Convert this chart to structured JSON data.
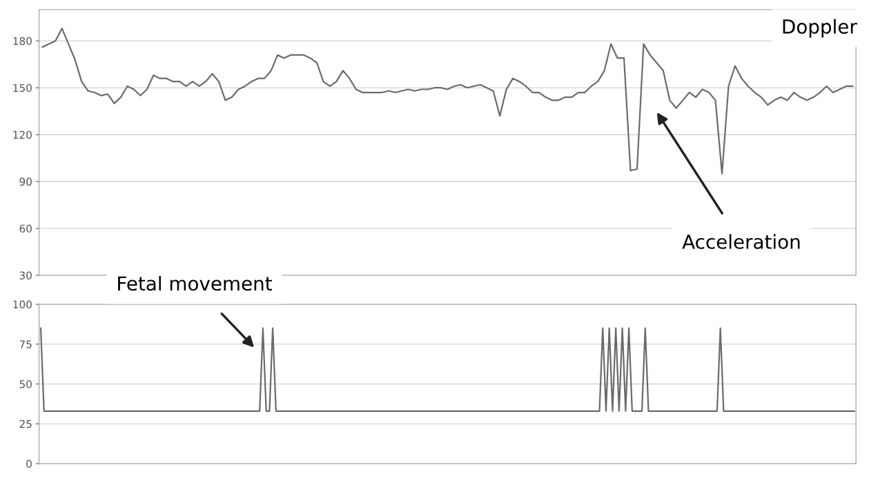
{
  "chart_data": [
    {
      "type": "line",
      "color": "#6b6b6b",
      "ylim": [
        30,
        200
      ],
      "yticks": [
        30,
        60,
        90,
        120,
        150,
        180
      ],
      "grid": "y",
      "tick_labels": "y",
      "annotations": [
        "Doppler",
        "Acceleration"
      ],
      "categories": [
        null,
        null,
        null,
        null,
        null,
        null,
        null,
        null,
        null,
        null,
        null,
        null,
        null,
        null,
        null,
        null,
        null,
        null,
        null,
        null,
        null,
        null,
        null,
        null,
        null,
        null,
        null,
        null,
        null,
        null,
        null,
        null,
        null,
        null,
        null,
        null,
        null,
        null,
        null,
        null,
        null,
        null,
        null,
        null,
        null,
        null,
        null,
        null,
        null,
        null,
        null,
        null,
        null,
        null,
        null,
        null,
        null,
        null,
        null,
        null,
        null,
        null,
        null,
        null,
        null,
        null,
        null,
        null,
        null,
        null,
        null,
        null,
        null,
        null,
        null,
        null,
        null,
        null,
        null,
        null,
        null,
        null,
        null,
        null,
        null,
        null,
        null,
        null,
        null,
        null,
        null,
        null,
        null,
        null,
        null,
        null,
        null,
        null,
        null,
        null,
        null,
        null,
        null,
        null,
        null,
        null,
        null,
        null,
        null,
        null,
        null,
        null,
        null,
        null,
        null,
        null,
        null,
        null,
        null,
        null,
        null,
        null,
        null,
        null,
        null
      ],
      "values": [
        176,
        178,
        180,
        188,
        178,
        168,
        154,
        148,
        147,
        145,
        146,
        140,
        144,
        151,
        149,
        145,
        149,
        158,
        156,
        156,
        154,
        154,
        151,
        154,
        151,
        154,
        159,
        154,
        142,
        144,
        149,
        151,
        154,
        156,
        156,
        161,
        171,
        169,
        171,
        171,
        171,
        169,
        166,
        154,
        151,
        154,
        161,
        156,
        149,
        147,
        147,
        147,
        147,
        148,
        147,
        148,
        149,
        148,
        149,
        149,
        150,
        150,
        149,
        151,
        152,
        150,
        151,
        152,
        150,
        148,
        132,
        149,
        156,
        154,
        151,
        147,
        147,
        144,
        142,
        142,
        144,
        144,
        147,
        147,
        151,
        154,
        161,
        178,
        169,
        169,
        97,
        98,
        178,
        171,
        166,
        161,
        142,
        137,
        142,
        147,
        144,
        149,
        147,
        142,
        95,
        151,
        164,
        156,
        151,
        147,
        144,
        139,
        142,
        144,
        142,
        147,
        144,
        142,
        144,
        147,
        151,
        147,
        149,
        151,
        151
      ]
    },
    {
      "type": "line",
      "color": "#6b6b6b",
      "ylim": [
        0,
        100
      ],
      "yticks": [
        0,
        25,
        50,
        75,
        100
      ],
      "grid": "y",
      "tick_labels": "y",
      "annotations": [
        "Fetal movement"
      ],
      "categories": [
        null,
        null,
        null,
        null,
        null,
        null,
        null,
        null,
        null,
        null,
        null,
        null,
        null,
        null,
        null,
        null,
        null,
        null,
        null,
        null,
        null,
        null,
        null,
        null,
        null,
        null,
        null,
        null,
        null,
        null,
        null,
        null,
        null,
        null,
        null,
        null,
        null,
        null,
        null,
        null,
        null,
        null,
        null,
        null,
        null,
        null,
        null,
        null,
        null,
        null,
        null,
        null,
        null,
        null,
        null,
        null,
        null,
        null,
        null,
        null,
        null,
        null,
        null,
        null,
        null,
        null,
        null,
        null,
        null,
        null,
        null,
        null,
        null,
        null,
        null,
        null,
        null,
        null,
        null,
        null,
        null,
        null,
        null,
        null,
        null,
        null,
        null,
        null,
        null,
        null,
        null,
        null,
        null,
        null,
        null,
        null,
        null,
        null,
        null,
        null,
        null,
        null,
        null,
        null,
        null,
        null,
        null,
        null,
        null,
        null,
        null,
        null,
        null,
        null,
        null,
        null,
        null,
        null,
        null,
        null,
        null,
        null,
        null,
        null,
        null,
        null,
        null,
        null,
        null,
        null,
        null,
        null,
        null,
        null,
        null,
        null,
        null,
        null,
        null,
        null,
        null,
        null,
        null,
        null,
        null,
        null,
        null,
        null,
        null,
        null,
        null,
        null,
        null,
        null,
        null,
        null,
        null,
        null,
        null,
        null,
        null,
        null,
        null,
        null,
        null,
        null,
        null,
        null,
        null,
        null,
        null,
        null,
        null,
        null,
        null,
        null,
        null,
        null,
        null,
        null,
        null,
        null,
        null,
        null,
        null,
        null,
        null,
        null,
        null,
        null,
        null,
        null,
        null,
        null,
        null,
        null,
        null,
        null,
        null,
        null,
        null,
        null,
        null,
        null,
        null,
        null,
        null,
        null,
        null,
        null,
        null,
        null,
        null,
        null,
        null,
        null,
        null,
        null,
        null,
        null,
        null,
        null,
        null,
        null,
        null,
        null,
        null,
        null,
        null,
        null,
        null,
        null,
        null,
        null,
        null,
        null,
        null,
        null,
        null,
        null,
        null,
        null,
        null,
        null,
        null,
        null,
        null,
        null,
        null,
        null
      ],
      "values": [
        85,
        33,
        33,
        33,
        33,
        33,
        33,
        33,
        33,
        33,
        33,
        33,
        33,
        33,
        33,
        33,
        33,
        33,
        33,
        33,
        33,
        33,
        33,
        33,
        33,
        33,
        33,
        33,
        33,
        33,
        33,
        33,
        33,
        33,
        33,
        33,
        33,
        33,
        33,
        33,
        33,
        33,
        33,
        33,
        33,
        33,
        33,
        33,
        33,
        33,
        33,
        33,
        33,
        33,
        33,
        33,
        33,
        33,
        33,
        33,
        33,
        33,
        33,
        33,
        33,
        33,
        33,
        33,
        85,
        33,
        33,
        85,
        33,
        33,
        33,
        33,
        33,
        33,
        33,
        33,
        33,
        33,
        33,
        33,
        33,
        33,
        33,
        33,
        33,
        33,
        33,
        33,
        33,
        33,
        33,
        33,
        33,
        33,
        33,
        33,
        33,
        33,
        33,
        33,
        33,
        33,
        33,
        33,
        33,
        33,
        33,
        33,
        33,
        33,
        33,
        33,
        33,
        33,
        33,
        33,
        33,
        33,
        33,
        33,
        33,
        33,
        33,
        33,
        33,
        33,
        33,
        33,
        33,
        33,
        33,
        33,
        33,
        33,
        33,
        33,
        33,
        33,
        33,
        33,
        33,
        33,
        33,
        33,
        33,
        33,
        33,
        33,
        33,
        33,
        33,
        33,
        33,
        33,
        33,
        33,
        33,
        33,
        33,
        33,
        33,
        33,
        33,
        33,
        33,
        33,
        33,
        33,
        85,
        33,
        85,
        33,
        85,
        33,
        85,
        33,
        85,
        33,
        33,
        33,
        33,
        85,
        33,
        33,
        33,
        33,
        33,
        33,
        33,
        33,
        33,
        33,
        33,
        33,
        33,
        33,
        33,
        33,
        33,
        33,
        33,
        33,
        33,
        33,
        85,
        33,
        33,
        33,
        33,
        33,
        33,
        33,
        33,
        33,
        33,
        33,
        33,
        33,
        33,
        33,
        33,
        33,
        33,
        33,
        33,
        33,
        33,
        33,
        33,
        33,
        33,
        33,
        33,
        33,
        33,
        33,
        33,
        33,
        33,
        33,
        33,
        33,
        33,
        33,
        33,
        33
      ]
    }
  ]
}
